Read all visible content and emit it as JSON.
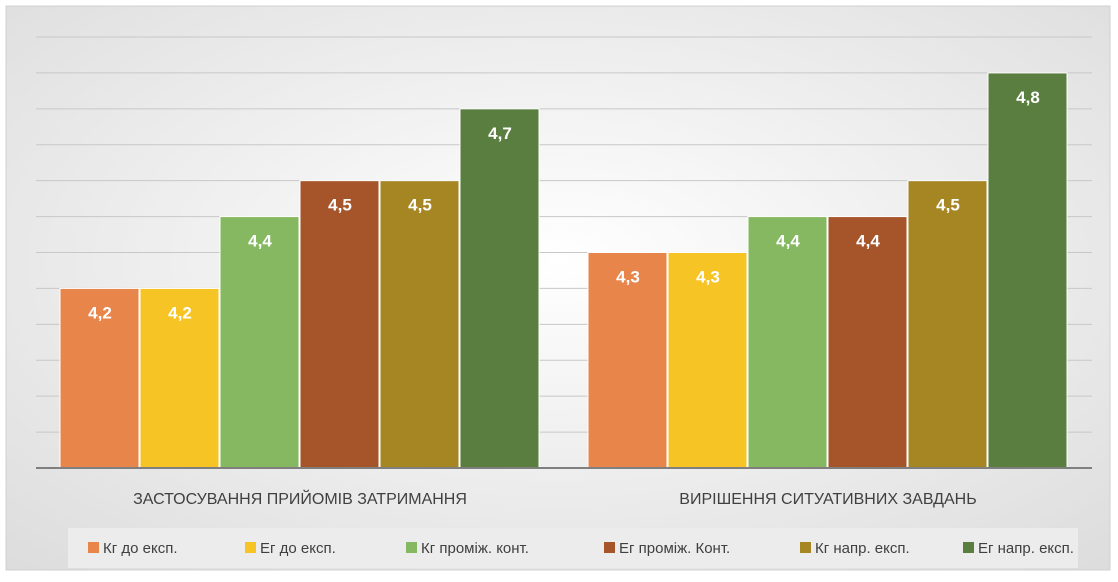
{
  "chart_data": {
    "type": "bar",
    "title": "",
    "xlabel": "",
    "ylabel": "",
    "ylim": [
      3.7,
      4.9
    ],
    "grid": true,
    "legend_position": "bottom",
    "categories": [
      "ЗАСТОСУВАННЯ ПРИЙОМІВ ЗАТРИМАННЯ",
      "ВИРІШЕННЯ СИТУАТИВНИХ ЗАВДАНЬ"
    ],
    "series": [
      {
        "name": "Кг до експ.",
        "color": "#E8854A",
        "values": [
          4.2,
          4.3
        ],
        "labels": [
          "4,2",
          "4,3"
        ]
      },
      {
        "name": "Ег до експ.",
        "color": "#F7C425",
        "values": [
          4.2,
          4.3
        ],
        "labels": [
          "4,2",
          "4,3"
        ]
      },
      {
        "name": "Кг проміж. конт.",
        "color": "#85B860",
        "values": [
          4.4,
          4.4
        ],
        "labels": [
          "4,4",
          "4,4"
        ]
      },
      {
        "name": "Ег проміж. Конт.",
        "color": "#A6552B",
        "values": [
          4.5,
          4.4
        ],
        "labels": [
          "4,5",
          "4,4"
        ]
      },
      {
        "name": "Кг напр. експ.",
        "color": "#A68623",
        "values": [
          4.5,
          4.5
        ],
        "labels": [
          "4,5",
          "4,5"
        ]
      },
      {
        "name": "Ег напр. експ.",
        "color": "#5A7E40",
        "values": [
          4.7,
          4.8
        ],
        "labels": [
          "4,7",
          "4,8"
        ]
      }
    ]
  }
}
